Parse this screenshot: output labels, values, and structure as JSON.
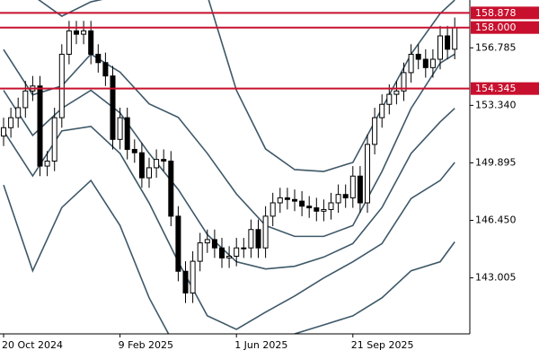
{
  "chart_data": {
    "type": "candlestick",
    "categories": [
      "20 Oct 2024",
      null,
      null,
      null,
      null,
      null,
      null,
      null,
      null,
      null,
      null,
      null,
      null,
      null,
      null,
      null,
      "9 Feb 2025",
      null,
      null,
      null,
      null,
      null,
      null,
      null,
      null,
      null,
      null,
      null,
      null,
      null,
      null,
      null,
      "1 Jun 2025",
      null,
      null,
      null,
      null,
      null,
      null,
      null,
      null,
      null,
      null,
      null,
      null,
      null,
      null,
      null,
      "21 Sep 2025",
      null,
      null,
      null,
      null,
      null,
      null,
      null,
      null,
      null,
      null,
      null,
      null,
      null,
      null
    ],
    "open": [
      151.5,
      152.0,
      152.6,
      153.2,
      154.2,
      154.5,
      149.7,
      150.0,
      152.6,
      156.4,
      157.8,
      157.6,
      157.8,
      156.4,
      155.9,
      155.1,
      151.3,
      152.6,
      150.7,
      150.5,
      149.0,
      149.6,
      150.1,
      150.0,
      146.7,
      143.4,
      142.1,
      144.0,
      145.1,
      145.3,
      144.8,
      144.2,
      144.3,
      144.8,
      144.8,
      145.9,
      144.8,
      146.7,
      147.5,
      147.8,
      147.7,
      147.6,
      147.3,
      147.2,
      147.0,
      147.1,
      147.5,
      148.0,
      147.8,
      149.1,
      147.5,
      151.0,
      152.6,
      153.4,
      154.0,
      154.2,
      155.3,
      156.4,
      156.1,
      155.6,
      156.1,
      157.5,
      156.7
    ],
    "high": [
      152.6,
      153.2,
      153.8,
      154.8,
      155.1,
      155.1,
      150.6,
      153.2,
      157.0,
      158.4,
      158.4,
      158.4,
      158.4,
      157.0,
      156.5,
      155.7,
      153.2,
      153.2,
      151.3,
      151.1,
      150.2,
      150.7,
      150.7,
      150.6,
      147.3,
      144.0,
      144.6,
      145.7,
      145.9,
      145.9,
      145.4,
      144.9,
      145.4,
      145.4,
      146.5,
      146.5,
      147.3,
      148.1,
      148.4,
      148.4,
      148.3,
      148.2,
      147.9,
      147.8,
      147.7,
      148.1,
      148.6,
      148.6,
      149.7,
      149.7,
      151.6,
      153.2,
      154.0,
      154.6,
      154.8,
      155.9,
      157.0,
      157.0,
      156.7,
      156.7,
      158.1,
      158.1,
      158.6
    ],
    "low": [
      150.9,
      151.4,
      152.0,
      152.6,
      153.6,
      149.1,
      149.1,
      149.4,
      152.0,
      155.8,
      157.0,
      157.0,
      155.8,
      155.3,
      154.5,
      150.7,
      150.7,
      150.1,
      149.9,
      148.4,
      148.4,
      149.0,
      149.4,
      146.1,
      142.8,
      141.5,
      141.5,
      143.4,
      144.5,
      144.2,
      143.6,
      143.6,
      143.7,
      144.2,
      144.2,
      144.2,
      144.2,
      146.1,
      146.9,
      147.1,
      147.0,
      146.7,
      146.6,
      146.4,
      146.4,
      146.5,
      146.9,
      147.2,
      147.2,
      146.9,
      146.9,
      150.4,
      152.0,
      152.8,
      153.4,
      153.6,
      154.7,
      155.5,
      155.0,
      155.0,
      155.5,
      156.1,
      156.1
    ],
    "close": [
      152.0,
      152.6,
      153.2,
      154.2,
      154.5,
      149.7,
      150.0,
      152.6,
      156.4,
      157.8,
      157.6,
      157.8,
      156.4,
      155.9,
      155.1,
      151.3,
      152.6,
      150.7,
      150.5,
      149.0,
      149.6,
      150.1,
      150.0,
      146.7,
      143.4,
      142.1,
      144.0,
      145.1,
      145.3,
      144.8,
      144.2,
      144.3,
      144.8,
      144.8,
      145.9,
      144.8,
      146.7,
      147.5,
      147.8,
      147.7,
      147.6,
      147.3,
      147.2,
      147.0,
      147.1,
      147.5,
      148.0,
      147.8,
      149.1,
      147.5,
      151.0,
      152.6,
      153.4,
      154.0,
      154.2,
      155.3,
      156.4,
      156.1,
      155.6,
      156.1,
      157.5,
      156.7,
      158.0
    ],
    "band_x": [
      0,
      4,
      8,
      12,
      16,
      20,
      24,
      28,
      32,
      36,
      40,
      44,
      48,
      52,
      56,
      60,
      62
    ],
    "bands": [
      {
        "color": "#3e5868",
        "values": [
          159.92,
          159.92,
          158.68,
          159.54,
          159.92,
          159.92,
          159.92,
          159.92,
          154.24,
          150.73,
          149.49,
          149.38,
          149.92,
          153.16,
          156.41,
          158.84,
          159.65
        ]
      },
      {
        "color": "#3e5868",
        "values": [
          156.68,
          153.97,
          154.5,
          156.41,
          155.33,
          153.43,
          152.62,
          150.46,
          148.03,
          146.14,
          145.49,
          145.49,
          146.14,
          149.38,
          153.16,
          155.87,
          156.41
        ]
      },
      {
        "color": "#3e5868",
        "values": [
          154.24,
          151.54,
          153.16,
          154.24,
          152.89,
          150.46,
          148.3,
          145.6,
          143.97,
          143.54,
          143.7,
          144.25,
          145.06,
          147.22,
          150.46,
          152.35,
          153.16
        ]
      },
      {
        "color": "#3e5868",
        "values": [
          151.81,
          149.11,
          151.81,
          152.08,
          150.46,
          147.49,
          143.97,
          140.73,
          139.92,
          140.95,
          141.92,
          143.0,
          143.97,
          145.06,
          147.76,
          148.84,
          149.92
        ]
      },
      {
        "color": "#3e5868",
        "values": [
          148.57,
          143.43,
          147.22,
          148.84,
          146.14,
          141.81,
          138.57,
          138.03,
          138.03,
          138.57,
          139.65,
          140.19,
          140.73,
          141.81,
          143.43,
          143.97,
          145.16
        ]
      }
    ],
    "levels": [
      158.878,
      {
        "value": 158.0,
        "label": "158.000"
      },
      154.345
    ],
    "level_color": "#c8102e",
    "ylim": [
      139.65,
      159.65
    ],
    "yticks": [
      156.785,
      {
        "value": 153.34,
        "label": "153.340"
      },
      149.895,
      {
        "value": 146.45,
        "label": "146.450"
      },
      143.005
    ]
  }
}
